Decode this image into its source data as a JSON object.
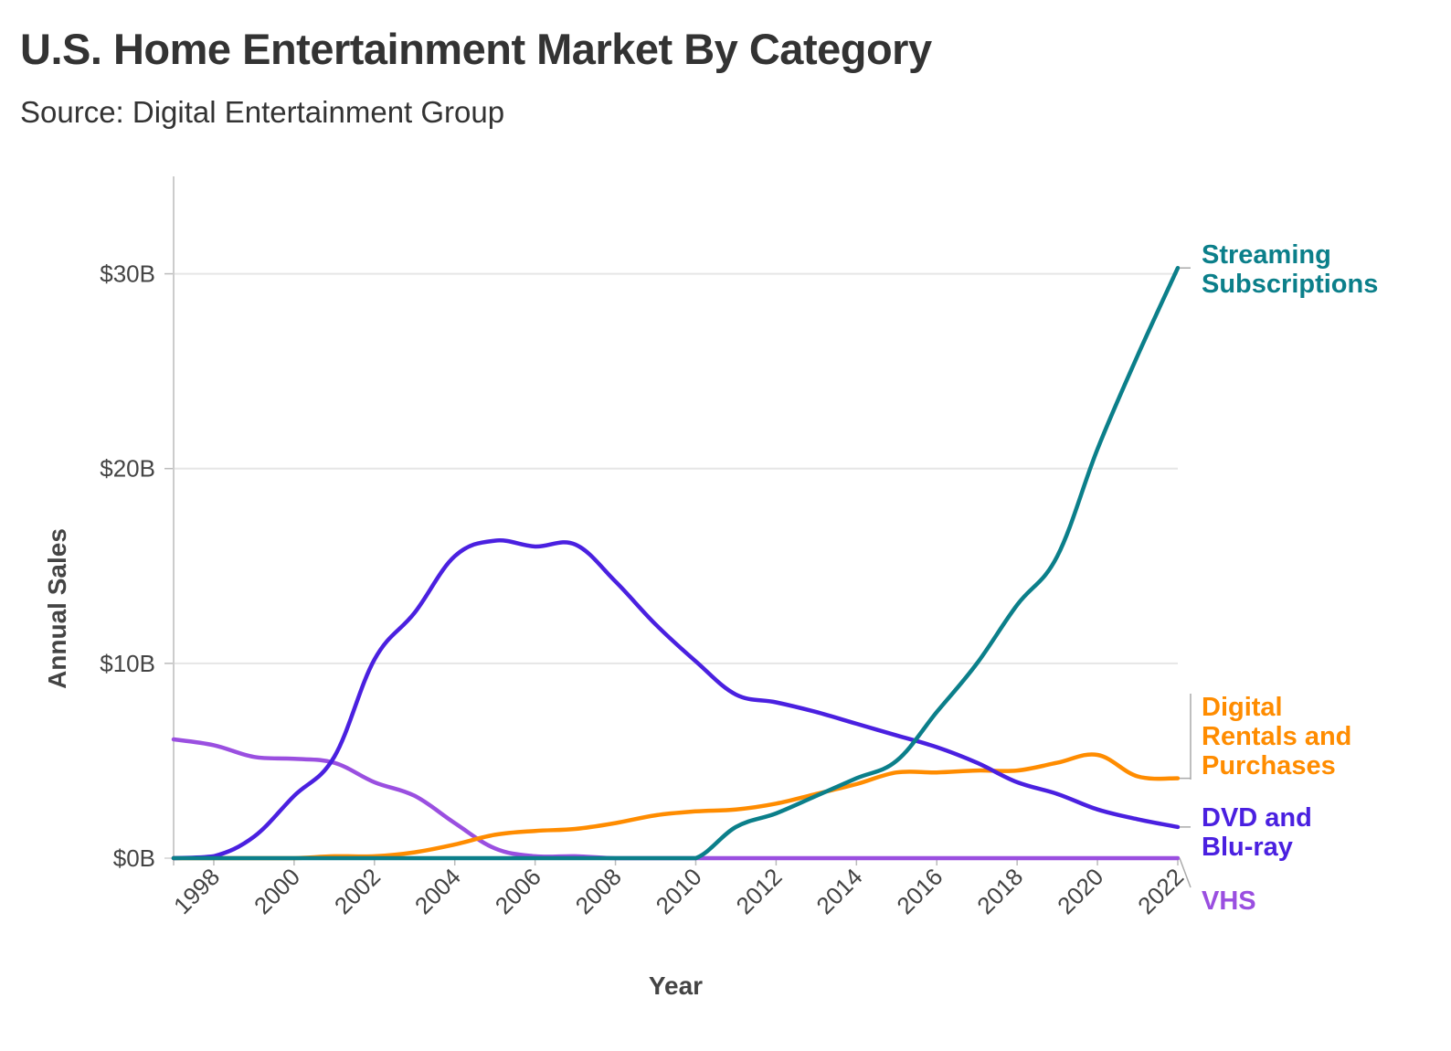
{
  "title": "U.S. Home Entertainment Market By Category",
  "subtitle": "Source: Digital Entertainment Group",
  "chart_data": {
    "type": "line",
    "title": "U.S. Home Entertainment Market By Category",
    "subtitle": "Source: Digital Entertainment Group",
    "xlabel": "Year",
    "ylabel": "Annual Sales",
    "x": [
      1997,
      1998,
      1999,
      2000,
      2001,
      2002,
      2003,
      2004,
      2005,
      2006,
      2007,
      2008,
      2009,
      2010,
      2011,
      2012,
      2013,
      2014,
      2015,
      2016,
      2017,
      2018,
      2019,
      2020,
      2021,
      2022
    ],
    "xlim": [
      1997,
      2022
    ],
    "x_ticks": [
      1998,
      2000,
      2002,
      2004,
      2006,
      2008,
      2010,
      2012,
      2014,
      2016,
      2018,
      2020,
      2022
    ],
    "ylim": [
      0,
      35
    ],
    "y_ticks": [
      0,
      10,
      20,
      30
    ],
    "y_tick_labels": [
      "$0B",
      "$10B",
      "$20B",
      "$30B"
    ],
    "grid": "horizontal",
    "legend": "direct labels at right end of lines",
    "series": [
      {
        "name": "Streaming Subscriptions",
        "label_lines": [
          "Streaming",
          "Subscriptions"
        ],
        "color": "#0b7f8a",
        "values": [
          0,
          0,
          0,
          0,
          0,
          0,
          0,
          0,
          0,
          0,
          0,
          0,
          0,
          0,
          1.6,
          2.3,
          3.2,
          4.1,
          5.0,
          7.5,
          10.0,
          13.0,
          15.5,
          21.0,
          25.8,
          30.3
        ]
      },
      {
        "name": "Digital Rentals and Purchases",
        "label_lines": [
          "Digital",
          "Rentals and",
          "Purchases"
        ],
        "color": "#ff8c00",
        "values": [
          0,
          0,
          0,
          0,
          0.1,
          0.1,
          0.3,
          0.7,
          1.2,
          1.4,
          1.5,
          1.8,
          2.2,
          2.4,
          2.5,
          2.8,
          3.3,
          3.8,
          4.4,
          4.4,
          4.5,
          4.5,
          4.9,
          5.3,
          4.2,
          4.1
        ]
      },
      {
        "name": "DVD and Blu-ray",
        "label_lines": [
          "DVD and",
          "Blu-ray"
        ],
        "color": "#4a20e0",
        "values": [
          0,
          0.1,
          1.1,
          3.2,
          5.2,
          10.2,
          12.6,
          15.5,
          16.3,
          16.0,
          16.1,
          14.2,
          12.0,
          10.1,
          8.4,
          8.0,
          7.5,
          6.9,
          6.3,
          5.7,
          4.9,
          3.9,
          3.3,
          2.5,
          2.0,
          1.6
        ]
      },
      {
        "name": "VHS",
        "label_lines": [
          "VHS"
        ],
        "color": "#9a4fe0",
        "values": [
          6.1,
          5.8,
          5.2,
          5.1,
          4.9,
          3.9,
          3.2,
          1.8,
          0.5,
          0.1,
          0.1,
          0,
          0,
          0,
          0,
          0,
          0,
          0,
          0,
          0,
          0,
          0,
          0,
          0,
          0,
          0
        ]
      }
    ]
  }
}
